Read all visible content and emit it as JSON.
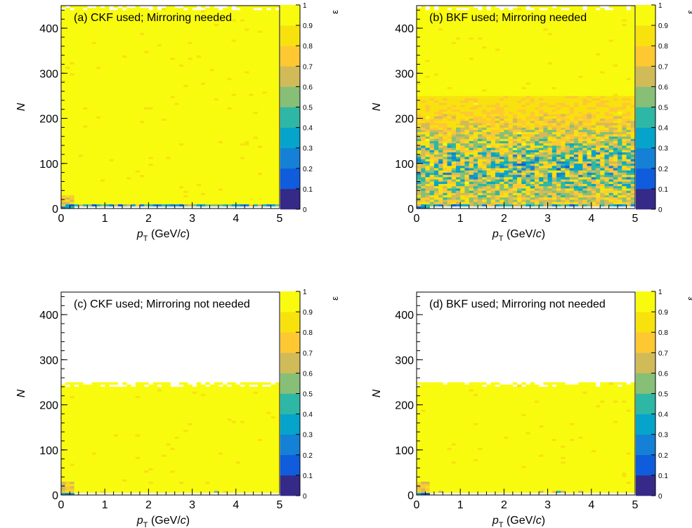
{
  "chart_data": [
    {
      "type": "heatmap",
      "title": "(a) CKF used; Mirroring needed",
      "xlabel": {
        "main": "p",
        "sub": "T",
        "unit_pre": " (GeV/",
        "unit_it": "c",
        "unit_post": ")"
      },
      "ylabel": "N",
      "zlabel": "ε",
      "xlim": [
        0,
        5
      ],
      "ylim": [
        0,
        450
      ],
      "zlim": [
        0,
        1
      ],
      "xticks": [
        "0",
        "1",
        "2",
        "3",
        "4",
        "5"
      ],
      "yticks": [
        "0",
        "100",
        "200",
        "300",
        "400"
      ],
      "zticks": [
        "0",
        "0.1",
        "0.2",
        "0.3",
        "0.4",
        "0.5",
        "0.6",
        "0.7",
        "0.8",
        "0.9",
        "1"
      ],
      "n_max": 450,
      "bottom_row_efficiency": "low",
      "mid_band": null,
      "typical_efficiency": 0.98
    },
    {
      "type": "heatmap",
      "title": "(b) BKF used; Mirroring needed",
      "xlabel": {
        "main": "p",
        "sub": "T",
        "unit_pre": " (GeV/",
        "unit_it": "c",
        "unit_post": ")"
      },
      "ylabel": "N",
      "zlabel": "ε",
      "xlim": [
        0,
        5
      ],
      "ylim": [
        0,
        450
      ],
      "zlim": [
        0,
        1
      ],
      "xticks": [
        "0",
        "1",
        "2",
        "3",
        "4",
        "5"
      ],
      "yticks": [
        "0",
        "100",
        "200",
        "300",
        "400"
      ],
      "zticks": [
        "0",
        "0.1",
        "0.2",
        "0.3",
        "0.4",
        "0.5",
        "0.6",
        "0.7",
        "0.8",
        "0.9",
        "1"
      ],
      "n_max": 450,
      "bottom_row_efficiency": "low",
      "mid_band": {
        "n_range": [
          10,
          250
        ],
        "efficiency_range": [
          0.15,
          0.9
        ]
      },
      "typical_efficiency": 0.98
    },
    {
      "type": "heatmap",
      "title": "(c) CKF used; Mirroring not needed",
      "xlabel": {
        "main": "p",
        "sub": "T",
        "unit_pre": " (GeV/",
        "unit_it": "c",
        "unit_post": ")"
      },
      "ylabel": "N",
      "zlabel": "ε",
      "xlim": [
        0,
        5
      ],
      "ylim": [
        0,
        450
      ],
      "zlim": [
        0,
        1
      ],
      "xticks": [
        "0",
        "1",
        "2",
        "3",
        "4",
        "5"
      ],
      "yticks": [
        "0",
        "100",
        "200",
        "300",
        "400"
      ],
      "zticks": [
        "0",
        "0.1",
        "0.2",
        "0.3",
        "0.4",
        "0.5",
        "0.6",
        "0.7",
        "0.8",
        "0.9",
        "1"
      ],
      "n_max": 250,
      "bottom_row_efficiency": "high",
      "mid_band": null,
      "typical_efficiency": 0.98
    },
    {
      "type": "heatmap",
      "title": "(d) BKF used; Mirroring not needed",
      "xlabel": {
        "main": "p",
        "sub": "T",
        "unit_pre": " (GeV/",
        "unit_it": "c",
        "unit_post": ")"
      },
      "ylabel": "N",
      "zlabel": "ε",
      "xlim": [
        0,
        5
      ],
      "ylim": [
        0,
        450
      ],
      "zlim": [
        0,
        1
      ],
      "xticks": [
        "0",
        "1",
        "2",
        "3",
        "4",
        "5"
      ],
      "yticks": [
        "0",
        "100",
        "200",
        "300",
        "400"
      ],
      "zticks": [
        "0",
        "0.1",
        "0.2",
        "0.3",
        "0.4",
        "0.5",
        "0.6",
        "0.7",
        "0.8",
        "0.9",
        "1"
      ],
      "n_max": 250,
      "bottom_row_efficiency": "high",
      "mid_band": null,
      "typical_efficiency": 0.98
    }
  ],
  "colorscale": [
    "#352a87",
    "#0f5cdd",
    "#1481d6",
    "#06a4ca",
    "#2eb7a4",
    "#87bf77",
    "#d1bb59",
    "#fec832",
    "#f8e20e",
    "#f9fb0e"
  ]
}
